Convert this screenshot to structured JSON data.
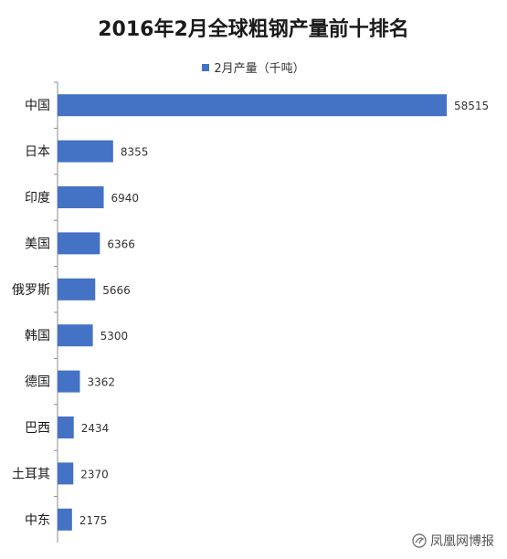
{
  "chart_data": {
    "type": "bar",
    "orientation": "horizontal",
    "title": "2016年2月全球粗钢产量前十排名",
    "categories": [
      "中国",
      "日本",
      "印度",
      "美国",
      "俄罗斯",
      "韩国",
      "德国",
      "巴西",
      "土耳其",
      "中东"
    ],
    "series": [
      {
        "name": "2月产量（千吨）",
        "values": [
          58515,
          8355,
          6940,
          6366,
          5666,
          5300,
          3362,
          2434,
          2370,
          2175
        ]
      }
    ],
    "xlim": [
      0,
      58515
    ],
    "grid": false,
    "legend_position": "top",
    "bar_color": "#4472c4"
  },
  "watermark": {
    "text": "凤凰网博报",
    "icon": "phoenix-logo-icon"
  }
}
